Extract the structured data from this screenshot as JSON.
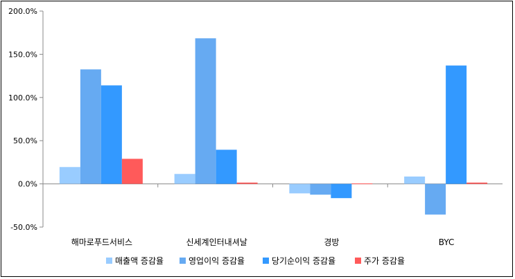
{
  "chart_data": {
    "type": "bar",
    "categories": [
      "해마로푸드서비스",
      "신세계인터내셔날",
      "경방",
      "BYC"
    ],
    "series": [
      {
        "name": "매출액 증감율",
        "color": "#99ccff",
        "values": [
          19.5,
          11.5,
          -11.0,
          8.5
        ]
      },
      {
        "name": "영업이익 증감율",
        "color": "#66aaf2",
        "values": [
          132.5,
          168.5,
          -12.5,
          -35.5
        ]
      },
      {
        "name": "당기순이익 증감율",
        "color": "#3399ff",
        "values": [
          114.0,
          39.5,
          -16.5,
          137.0
        ]
      },
      {
        "name": "주가 증감율",
        "color": "#ff5a5a",
        "values": [
          29.0,
          1.5,
          0.5,
          1.5
        ]
      }
    ],
    "yticks": [
      "200.0%",
      "150.0%",
      "100.0%",
      "50.0%",
      "0.0%",
      "-50.0%"
    ],
    "ylim": [
      -50,
      200
    ],
    "grid": false,
    "legend_position": "bottom"
  }
}
